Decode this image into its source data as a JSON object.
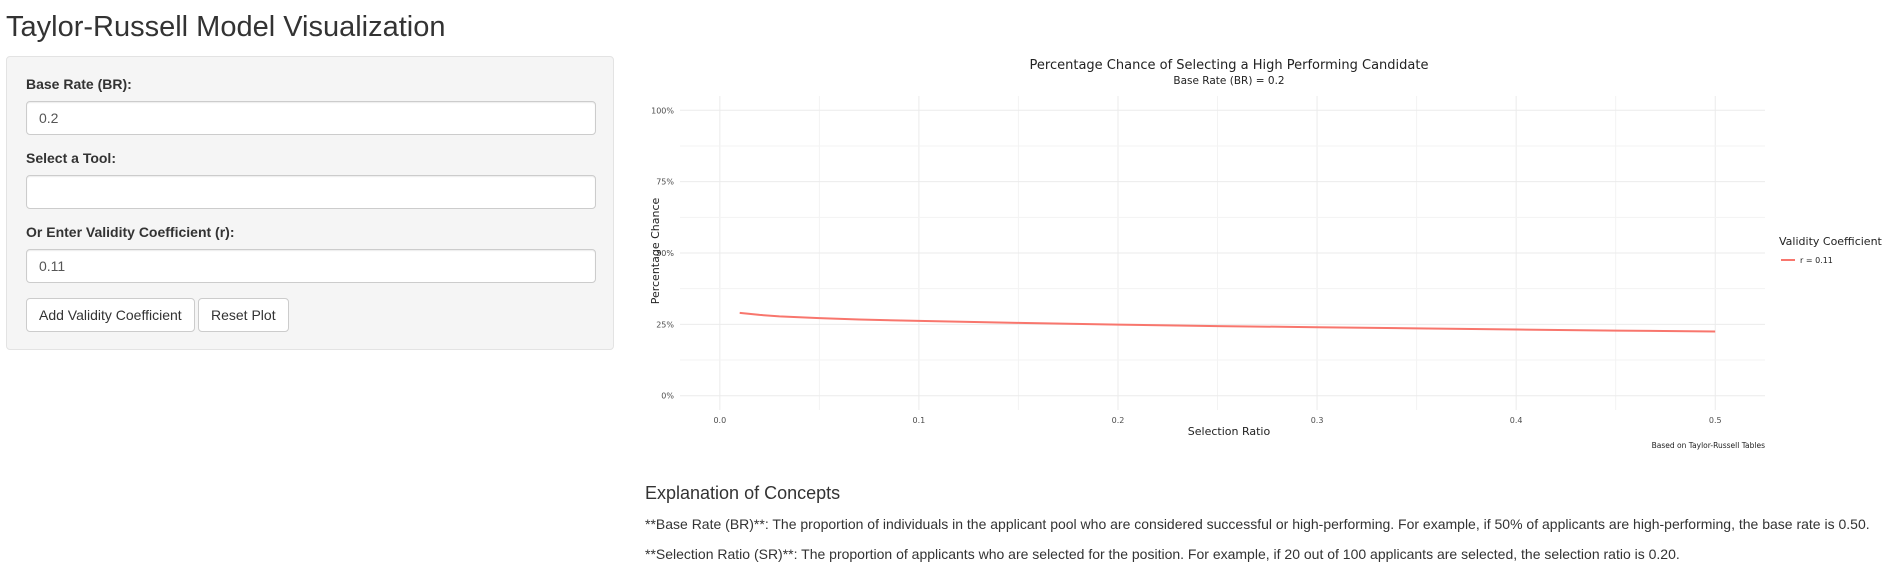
{
  "app": {
    "title": "Taylor-Russell Model Visualization"
  },
  "sidebar": {
    "base_rate": {
      "label": "Base Rate (BR):",
      "value": "0.2"
    },
    "tool": {
      "label": "Select a Tool:",
      "value": ""
    },
    "validity": {
      "label": "Or Enter Validity Coefficient (r):",
      "value": "0.11"
    },
    "add_button_label": "Add Validity Coefficient",
    "reset_button_label": "Reset Plot"
  },
  "chart_data": {
    "type": "line",
    "title": "Percentage Chance of Selecting a High Performing Candidate",
    "subtitle": "Base Rate (BR) = 0.2",
    "xlabel": "Selection Ratio",
    "ylabel": "Percentage Chance",
    "caption": "Based on Taylor-Russell Tables",
    "xlim": [
      -0.02,
      0.525
    ],
    "ylim": [
      -0.05,
      1.05
    ],
    "x_ticks": [
      0.0,
      0.1,
      0.2,
      0.3,
      0.4,
      0.5
    ],
    "x_tick_labels": [
      "0.0",
      "0.1",
      "0.2",
      "0.3",
      "0.4",
      "0.5"
    ],
    "y_ticks": [
      0,
      0.25,
      0.5,
      0.75,
      1.0
    ],
    "y_tick_labels": [
      "0%",
      "25%",
      "50%",
      "75%",
      "100%"
    ],
    "grid": true,
    "legend": {
      "title": "Validity Coefficient",
      "placement": "right"
    },
    "series": [
      {
        "name": "r = 0.11",
        "color": "#F8766D",
        "x": [
          0.01,
          0.02,
          0.03,
          0.05,
          0.07,
          0.1,
          0.15,
          0.2,
          0.25,
          0.3,
          0.35,
          0.4,
          0.45,
          0.5
        ],
        "y": [
          0.29,
          0.283,
          0.278,
          0.272,
          0.267,
          0.262,
          0.255,
          0.249,
          0.244,
          0.24,
          0.236,
          0.232,
          0.228,
          0.225
        ]
      }
    ]
  },
  "explanation": {
    "heading": "Explanation of Concepts",
    "paragraphs": [
      "**Base Rate (BR)**: The proportion of individuals in the applicant pool who are considered successful or high-performing. For example, if 50% of applicants are high-performing, the base rate is 0.50.",
      "**Selection Ratio (SR)**: The proportion of applicants who are selected for the position. For example, if 20 out of 100 applicants are selected, the selection ratio is 0.20."
    ]
  }
}
